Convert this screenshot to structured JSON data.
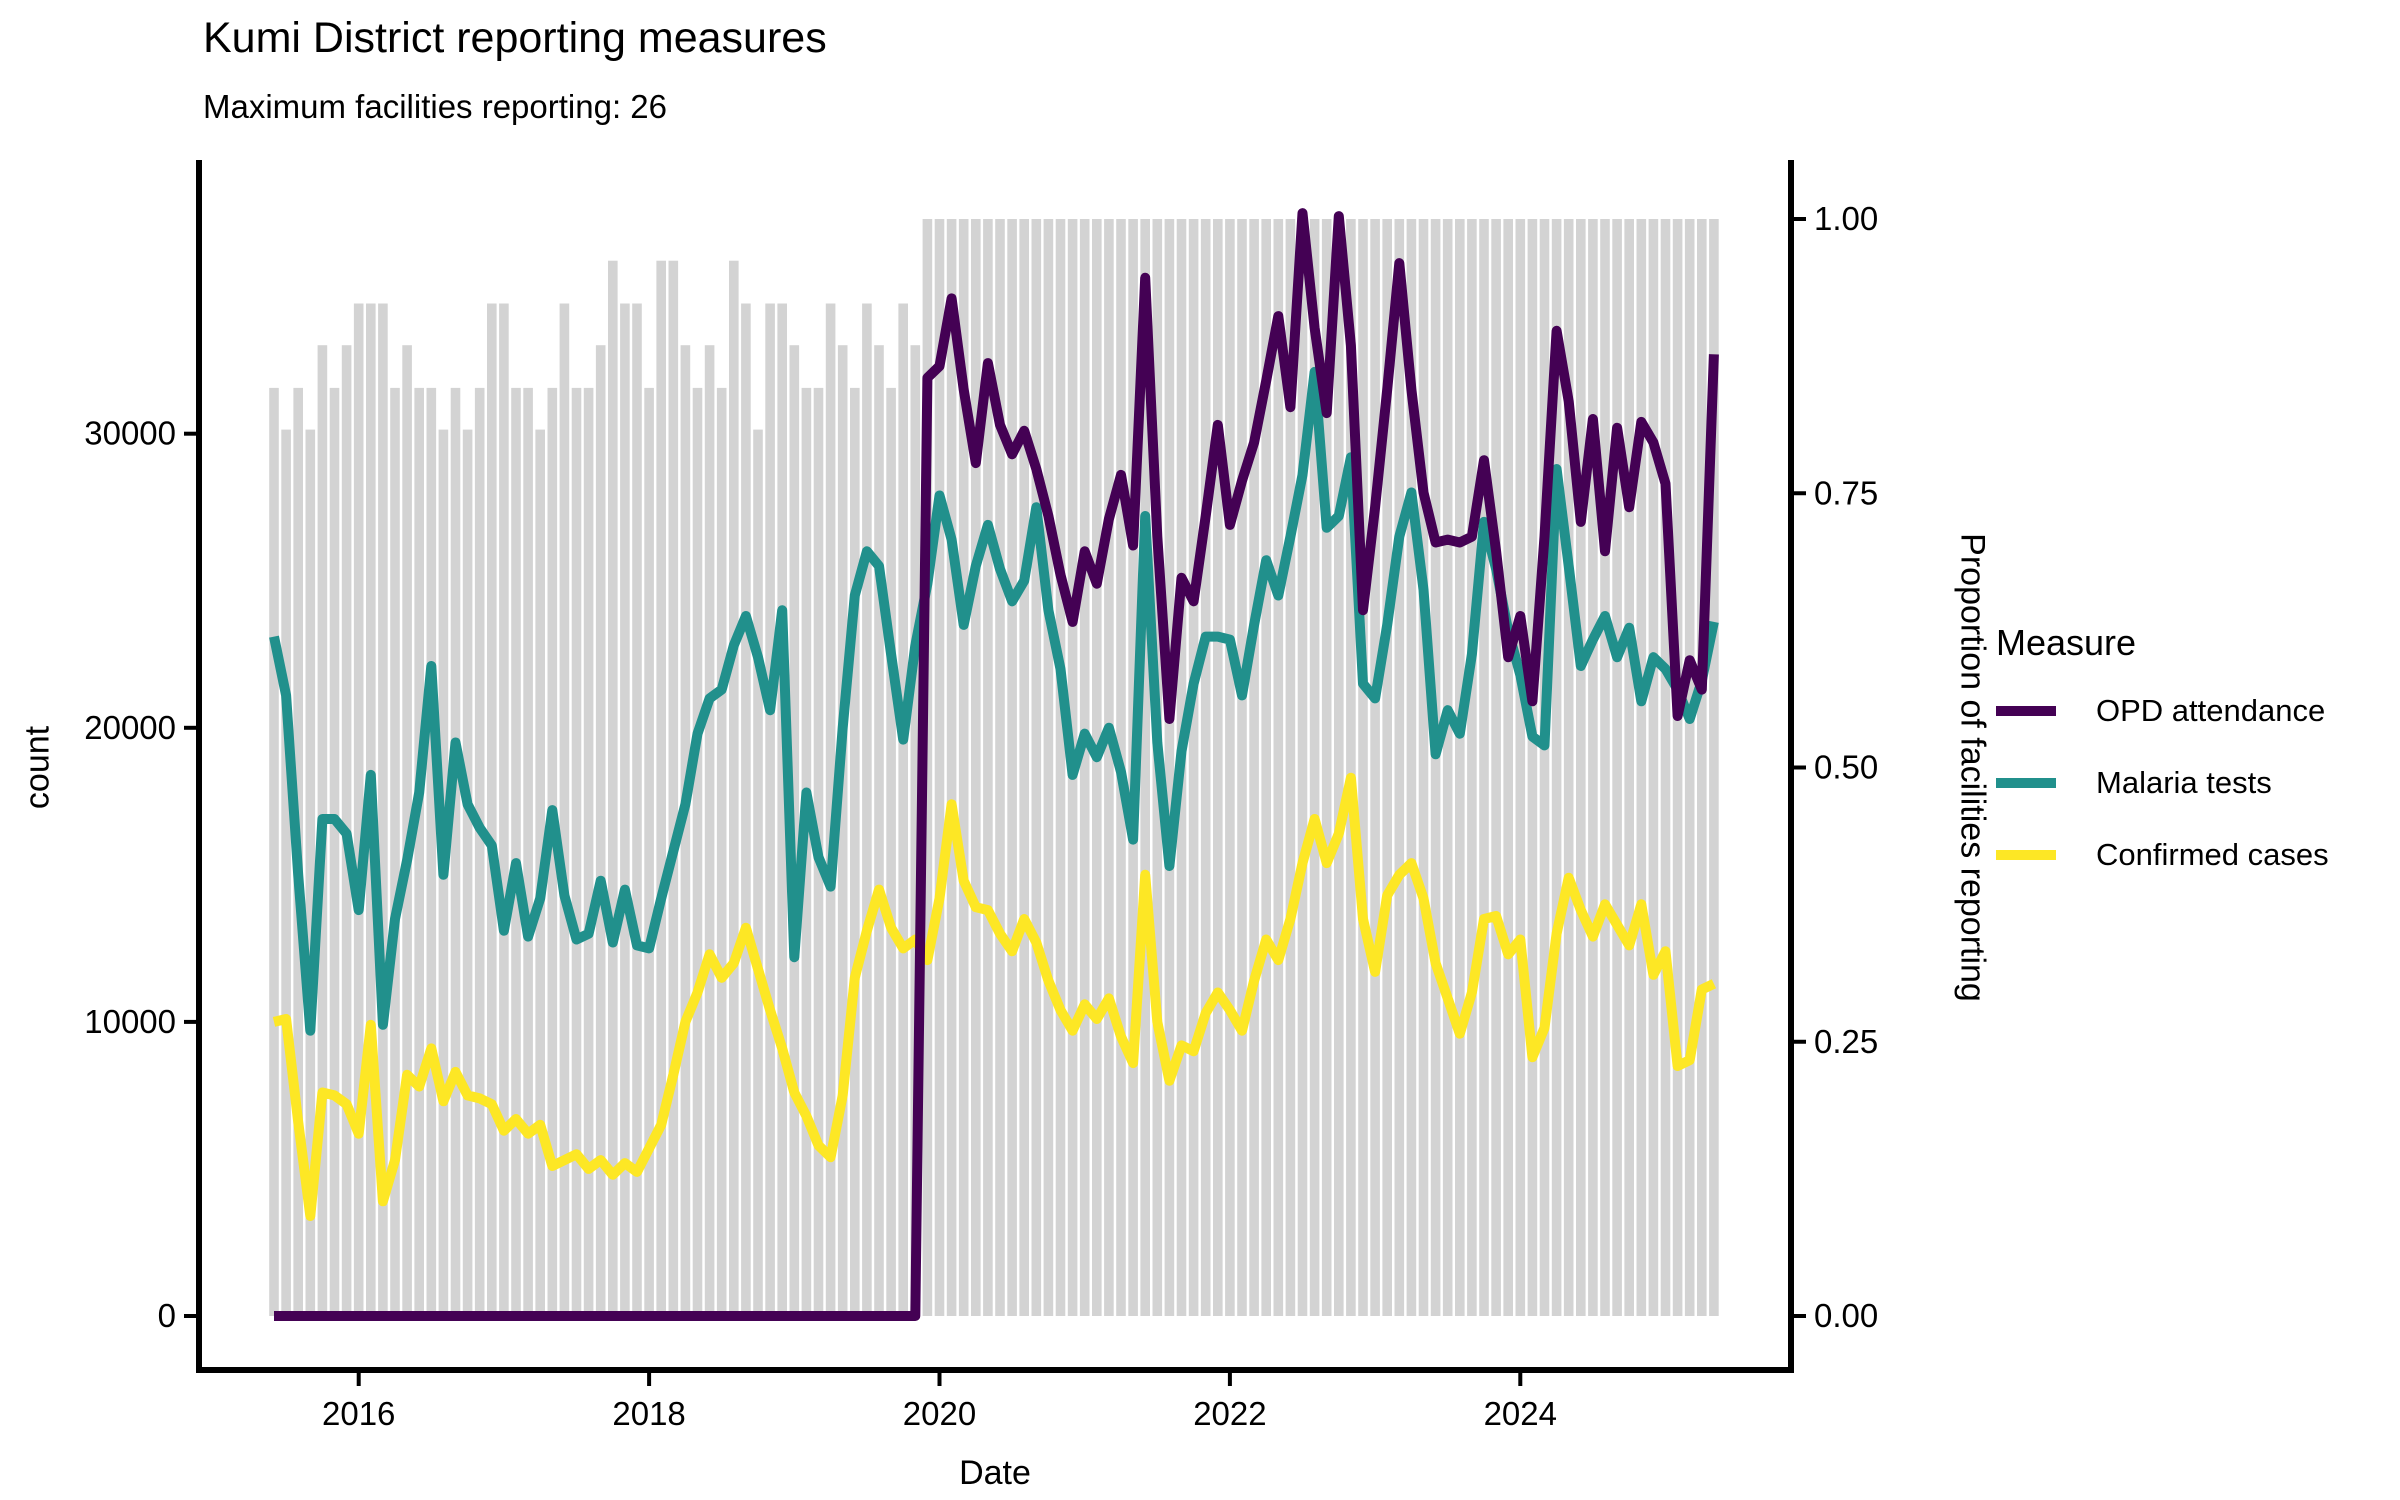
{
  "page": {
    "title": "Kumi District reporting measures",
    "subtitle": "Maximum facilities reporting: 26"
  },
  "chart_data": {
    "type": "line+bar",
    "title": "Kumi District reporting measures",
    "subtitle": "Maximum facilities reporting: 26",
    "xlabel": "Date",
    "ylabel_left": "count",
    "ylabel_right": "Proportion of facilities reporting",
    "x_tick_labels": [
      "2016",
      "2018",
      "2020",
      "2022",
      "2024"
    ],
    "y_ticks_left": [
      0,
      10000,
      20000,
      30000
    ],
    "y_ticks_right": [
      0.0,
      0.25,
      0.5,
      0.75,
      1.0
    ],
    "ylim_left": [
      0,
      39300
    ],
    "ylim_right": [
      0,
      1.05
    ],
    "right_axis_scale": 37300,
    "grid": false,
    "legend": {
      "title": "Measure",
      "position": "right",
      "entries": [
        "OPD attendance",
        "Malaria tests",
        "Confirmed cases"
      ]
    },
    "colors": {
      "opd": "#440154",
      "malaria": "#21908C",
      "confirmed": "#FDE725",
      "bars": "#D3D3D3",
      "axis": "#000000"
    },
    "months": [
      "2015-06",
      "2015-07",
      "2015-08",
      "2015-09",
      "2015-10",
      "2015-11",
      "2015-12",
      "2016-01",
      "2016-02",
      "2016-03",
      "2016-04",
      "2016-05",
      "2016-06",
      "2016-07",
      "2016-08",
      "2016-09",
      "2016-10",
      "2016-11",
      "2016-12",
      "2017-01",
      "2017-02",
      "2017-03",
      "2017-04",
      "2017-05",
      "2017-06",
      "2017-07",
      "2017-08",
      "2017-09",
      "2017-10",
      "2017-11",
      "2017-12",
      "2018-01",
      "2018-02",
      "2018-03",
      "2018-04",
      "2018-05",
      "2018-06",
      "2018-07",
      "2018-08",
      "2018-09",
      "2018-10",
      "2018-11",
      "2018-12",
      "2019-01",
      "2019-02",
      "2019-03",
      "2019-04",
      "2019-05",
      "2019-06",
      "2019-07",
      "2019-08",
      "2019-09",
      "2019-10",
      "2019-11",
      "2019-12",
      "2020-01",
      "2020-02",
      "2020-03",
      "2020-04",
      "2020-05",
      "2020-06",
      "2020-07",
      "2020-08",
      "2020-09",
      "2020-10",
      "2020-11",
      "2020-12",
      "2021-01",
      "2021-02",
      "2021-03",
      "2021-04",
      "2021-05",
      "2021-06",
      "2021-07",
      "2021-08",
      "2021-09",
      "2021-10",
      "2021-11",
      "2021-12",
      "2022-01",
      "2022-02",
      "2022-03",
      "2022-04",
      "2022-05",
      "2022-06",
      "2022-07",
      "2022-08",
      "2022-09",
      "2022-10",
      "2022-11",
      "2022-12",
      "2023-01",
      "2023-02",
      "2023-03",
      "2023-04",
      "2023-05",
      "2023-06",
      "2023-07",
      "2023-08",
      "2023-09",
      "2023-10",
      "2023-11",
      "2023-12",
      "2024-01",
      "2024-02",
      "2024-03",
      "2024-04",
      "2024-05",
      "2024-06",
      "2024-07",
      "2024-08",
      "2024-09",
      "2024-10",
      "2024-11",
      "2024-12",
      "2025-01",
      "2025-02",
      "2025-03",
      "2025-04",
      "2025-05"
    ],
    "series": [
      {
        "name": "OPD attendance",
        "color": "#440154",
        "values": [
          0,
          0,
          0,
          0,
          0,
          0,
          0,
          0,
          0,
          0,
          0,
          0,
          0,
          0,
          0,
          0,
          0,
          0,
          0,
          0,
          0,
          0,
          0,
          0,
          0,
          0,
          0,
          0,
          0,
          0,
          0,
          0,
          0,
          0,
          0,
          0,
          0,
          0,
          0,
          0,
          0,
          0,
          0,
          0,
          0,
          0,
          0,
          0,
          0,
          0,
          0,
          0,
          0,
          0,
          31900,
          32300,
          34600,
          31500,
          29000,
          32400,
          30300,
          29300,
          30100,
          28800,
          27200,
          25200,
          23600,
          26000,
          24900,
          27100,
          28600,
          26200,
          35300,
          26500,
          20300,
          25100,
          24300,
          27200,
          30300,
          26900,
          28400,
          29700,
          31800,
          34000,
          30900,
          37500,
          33600,
          30700,
          37400,
          33000,
          24000,
          27500,
          31500,
          35800,
          31500,
          28000,
          26300,
          26400,
          26300,
          26500,
          29100,
          26000,
          22400,
          23800,
          20900,
          26500,
          33500,
          31100,
          27000,
          30500,
          26000,
          30200,
          27500,
          30400,
          29700,
          28300,
          20400,
          22300,
          21300,
          32700
        ]
      },
      {
        "name": "Malaria tests",
        "color": "#21908C",
        "values": [
          23100,
          21100,
          15000,
          9700,
          16900,
          16900,
          16400,
          13800,
          18400,
          9900,
          13500,
          15500,
          17800,
          22100,
          15000,
          19500,
          17400,
          16600,
          16000,
          13100,
          15400,
          12900,
          14200,
          17200,
          14300,
          12800,
          13000,
          14800,
          12700,
          14500,
          12600,
          12500,
          14200,
          15800,
          17400,
          19800,
          21000,
          21300,
          22800,
          23800,
          22400,
          20600,
          24000,
          12200,
          17800,
          15600,
          14600,
          20000,
          24500,
          26000,
          25500,
          22500,
          19600,
          22800,
          24900,
          27900,
          26400,
          23500,
          25500,
          26900,
          25400,
          24300,
          25000,
          27500,
          24000,
          22000,
          18400,
          19800,
          19000,
          20000,
          18500,
          16200,
          27200,
          19500,
          15300,
          19200,
          21500,
          23100,
          23100,
          23000,
          21100,
          23500,
          25700,
          24500,
          26500,
          28600,
          32100,
          26800,
          27200,
          29200,
          21500,
          21000,
          23500,
          26500,
          28000,
          24700,
          19100,
          20600,
          19800,
          22500,
          27000,
          25400,
          23300,
          21800,
          19700,
          19400,
          28800,
          25500,
          22100,
          23000,
          23800,
          22400,
          23400,
          20900,
          22400,
          22000,
          21300,
          20300,
          21600,
          23600
        ]
      },
      {
        "name": "Confirmed cases",
        "color": "#FDE725",
        "values": [
          10000,
          10100,
          6600,
          3400,
          7600,
          7500,
          7200,
          6200,
          9900,
          3900,
          5300,
          8200,
          7800,
          9100,
          7300,
          8300,
          7500,
          7400,
          7200,
          6300,
          6700,
          6200,
          6500,
          5100,
          5300,
          5500,
          5000,
          5300,
          4800,
          5200,
          4900,
          5700,
          6500,
          8200,
          10000,
          11000,
          12300,
          11500,
          12000,
          13200,
          11800,
          10400,
          9100,
          7600,
          6800,
          5800,
          5400,
          7500,
          11500,
          13100,
          14500,
          13200,
          12500,
          12800,
          12100,
          14200,
          17400,
          14800,
          13900,
          13800,
          13000,
          12400,
          13500,
          12700,
          11400,
          10400,
          9700,
          10600,
          10100,
          10800,
          9500,
          8600,
          15000,
          10000,
          8000,
          9200,
          9000,
          10300,
          11000,
          10400,
          9700,
          11400,
          12800,
          12100,
          13500,
          15400,
          16900,
          15400,
          16400,
          18300,
          13500,
          11700,
          14300,
          15000,
          15400,
          14200,
          12000,
          10800,
          9600,
          11000,
          13500,
          13600,
          12300,
          12800,
          8800,
          9800,
          13000,
          14900,
          13800,
          12900,
          14000,
          13300,
          12600,
          14000,
          11600,
          12400,
          8500,
          8700,
          11100,
          11300
        ]
      }
    ],
    "bars": {
      "name": "Proportion of facilities reporting",
      "color": "#D3D3D3",
      "values": [
        0.846,
        0.808,
        0.846,
        0.808,
        0.885,
        0.846,
        0.885,
        0.923,
        0.923,
        0.923,
        0.846,
        0.885,
        0.846,
        0.846,
        0.808,
        0.846,
        0.808,
        0.846,
        0.923,
        0.923,
        0.846,
        0.846,
        0.808,
        0.846,
        0.923,
        0.846,
        0.846,
        0.885,
        0.962,
        0.923,
        0.923,
        0.846,
        0.962,
        0.962,
        0.885,
        0.846,
        0.885,
        0.846,
        0.962,
        0.923,
        0.808,
        0.923,
        0.923,
        0.885,
        0.846,
        0.846,
        0.923,
        0.885,
        0.846,
        0.923,
        0.885,
        0.846,
        0.923,
        0.885,
        1.0,
        1.0,
        1.0,
        1.0,
        1.0,
        1.0,
        1.0,
        1.0,
        1.0,
        1.0,
        1.0,
        1.0,
        1.0,
        1.0,
        1.0,
        1.0,
        1.0,
        1.0,
        1.0,
        1.0,
        1.0,
        1.0,
        1.0,
        1.0,
        1.0,
        1.0,
        1.0,
        1.0,
        1.0,
        1.0,
        1.0,
        1.0,
        1.0,
        1.0,
        1.0,
        1.0,
        1.0,
        1.0,
        1.0,
        1.0,
        1.0,
        1.0,
        1.0,
        1.0,
        1.0,
        1.0,
        1.0,
        1.0,
        1.0,
        1.0,
        1.0,
        1.0,
        1.0,
        1.0,
        1.0,
        1.0,
        1.0,
        1.0,
        1.0,
        1.0,
        1.0,
        1.0,
        1.0,
        1.0,
        1.0,
        1.0
      ]
    }
  }
}
